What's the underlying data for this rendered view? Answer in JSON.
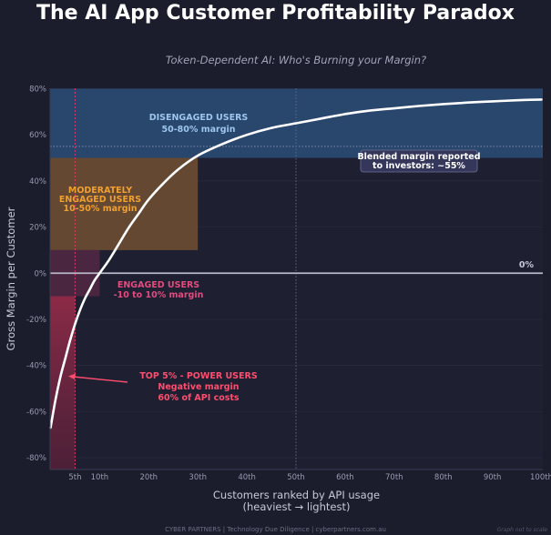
{
  "page": {
    "title": "The AI App Customer Profitability Paradox",
    "subtitle": "Token-Dependent AI:  Who's Burning your Margin?",
    "footer": "CYBER PARTNERS  |  Technology Due Diligence  |  cyberpartners.com.au",
    "scale_note": "Graph not to scale"
  },
  "colors": {
    "background": "#1b1c2c",
    "plot_bg": "#1e1f31",
    "disengaged_band": "#2c4e78",
    "moderate_band": "#6b4c33",
    "engaged_band": "#4d2743",
    "power_band": "#8a2a45",
    "curve": "#ffffff",
    "disengaged_text": "#9cc6ee",
    "moderate_text": "#f0a030",
    "engaged_text": "#e44a7e",
    "power_text": "#ff4d6e"
  },
  "chart_data": {
    "type": "line",
    "title": "Token-Dependent AI:  Who's Burning your Margin?",
    "xlabel": "Customers ranked by API usage",
    "xlabel_sub": "(heaviest → lightest)",
    "ylabel": "Gross Margin per Customer",
    "xlim": [
      0,
      100
    ],
    "ylim": [
      -85,
      80
    ],
    "x_ticks": [
      5,
      10,
      20,
      30,
      40,
      50,
      60,
      70,
      80,
      90,
      100
    ],
    "x_tick_labels": [
      "5th",
      "10th",
      "20th",
      "30th",
      "40th",
      "50th",
      "60th",
      "70th",
      "80th",
      "90th",
      "100th"
    ],
    "y_ticks": [
      80,
      60,
      40,
      20,
      0,
      -20,
      -40,
      -60,
      -80
    ],
    "y_tick_labels": [
      "80%",
      "60%",
      "40%",
      "20%",
      "0%",
      "-20%",
      "-40%",
      "-60%",
      "-80%"
    ],
    "series": [
      {
        "name": "Gross margin curve",
        "x": [
          0,
          1,
          2,
          3,
          4,
          5,
          6,
          7,
          8,
          9,
          10,
          12,
          14,
          16,
          18,
          20,
          23,
          26,
          30,
          35,
          40,
          45,
          50,
          55,
          60,
          65,
          70,
          75,
          80,
          85,
          90,
          95,
          100
        ],
        "y": [
          -67,
          -55,
          -45,
          -37,
          -29,
          -22,
          -16,
          -11,
          -7,
          -3,
          0,
          6,
          13,
          20,
          26,
          32,
          39,
          45,
          51,
          56,
          60,
          63,
          65,
          67,
          69,
          70.5,
          71.5,
          72.5,
          73.3,
          74,
          74.5,
          75,
          75.3
        ]
      }
    ],
    "bands": [
      {
        "name": "Disengaged users",
        "x_start": 0,
        "y_from": 50,
        "y_to": 80
      },
      {
        "name": "Moderately engaged users",
        "x_start": 0,
        "y_from": 10,
        "y_to": 50
      },
      {
        "name": "Engaged users",
        "x_start": 0,
        "y_from": -10,
        "y_to": 10
      },
      {
        "name": "Power users",
        "x_start": 0,
        "y_from": -85,
        "y_to": -10
      }
    ],
    "reference_lines": [
      {
        "axis": "y",
        "value": 55,
        "style": "dotted",
        "label": "Blended margin reported\nto investors: ~55%"
      },
      {
        "axis": "y",
        "value": 0,
        "style": "solid",
        "label": "0%"
      },
      {
        "axis": "x",
        "value": 5,
        "style": "dotted-red"
      },
      {
        "axis": "x",
        "value": 50,
        "style": "dotted"
      }
    ],
    "annotations": {
      "disengaged": [
        "DISENGAGED USERS",
        "50-80% margin"
      ],
      "moderate": [
        "MODERATELY",
        "ENGAGED USERS",
        "10-50% margin"
      ],
      "engaged": [
        "ENGAGED USERS",
        "-10 to 10% margin"
      ],
      "power": [
        "TOP 5%  -  POWER USERS",
        "Negative margin",
        "60% of API costs"
      ],
      "blended": [
        "Blended margin reported",
        "to investors: ~55%"
      ],
      "zero": "0%"
    }
  }
}
